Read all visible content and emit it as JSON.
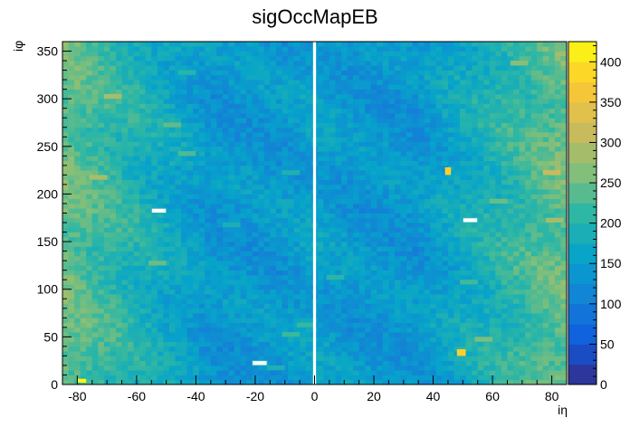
{
  "chart_data": {
    "type": "heatmap",
    "title": "sigOccMapEB",
    "xlabel": "iη",
    "ylabel": "iφ",
    "xlim": [
      -85,
      85
    ],
    "ylim": [
      0,
      360
    ],
    "zlim": [
      0,
      425
    ],
    "grid": false,
    "x_ticks": [
      -80,
      -60,
      -40,
      -20,
      0,
      20,
      40,
      60,
      80
    ],
    "y_ticks": [
      0,
      50,
      100,
      150,
      200,
      250,
      300,
      350
    ],
    "z_ticks": [
      0,
      50,
      100,
      150,
      200,
      250,
      300,
      350,
      400
    ],
    "colormap": [
      "#352a87",
      "#0f5cdd",
      "#1481d6",
      "#06a4ca",
      "#2eb7a4",
      "#87bf77",
      "#d1bb59",
      "#fec832",
      "#f9fb0e"
    ],
    "gap_column_ieta": 0,
    "profile_description": "occupancy mostly 150-220, higher (~250-300) near |iη| 70-85, lowest (~120-150) near |iη| 5-30",
    "hot_spots": [
      {
        "ieta_from": 44,
        "ieta_to": 46,
        "iphi_from": 220,
        "iphi_to": 228,
        "value": 380
      },
      {
        "ieta_from": 48,
        "ieta_to": 51,
        "iphi_from": 30,
        "iphi_to": 37,
        "value": 380
      },
      {
        "ieta_from": -80,
        "ieta_to": -77,
        "iphi_from": 2,
        "iphi_to": 6,
        "value": 420
      }
    ],
    "dead_regions": [
      {
        "ieta_from": -55,
        "ieta_to": -50,
        "iphi_from": 180,
        "iphi_to": 185
      },
      {
        "ieta_from": -21,
        "ieta_to": -16,
        "iphi_from": 20,
        "iphi_to": 25
      },
      {
        "ieta_from": 50,
        "ieta_to": 55,
        "iphi_from": 170,
        "iphi_to": 175
      }
    ],
    "highlight_tiles": [
      {
        "ieta_from": -46,
        "ieta_to": -40,
        "iphi_from": 325,
        "iphi_to": 330
      },
      {
        "ieta_from": -71,
        "ieta_to": -65,
        "iphi_from": 300,
        "iphi_to": 305
      },
      {
        "ieta_from": -51,
        "ieta_to": -45,
        "iphi_from": 270,
        "iphi_to": 275
      },
      {
        "ieta_from": -46,
        "ieta_to": -40,
        "iphi_from": 240,
        "iphi_to": 245
      },
      {
        "ieta_from": -76,
        "ieta_to": -70,
        "iphi_from": 215,
        "iphi_to": 220
      },
      {
        "ieta_from": -11,
        "ieta_to": -5,
        "iphi_from": 220,
        "iphi_to": 225
      },
      {
        "ieta_from": -31,
        "ieta_to": -25,
        "iphi_from": 165,
        "iphi_to": 170
      },
      {
        "ieta_from": -56,
        "ieta_to": -50,
        "iphi_from": 125,
        "iphi_to": 130
      },
      {
        "ieta_from": -6,
        "ieta_to": 0,
        "iphi_from": 60,
        "iphi_to": 65
      },
      {
        "ieta_from": -11,
        "ieta_to": -5,
        "iphi_from": 50,
        "iphi_to": 55
      },
      {
        "ieta_from": -16,
        "ieta_to": -10,
        "iphi_from": 15,
        "iphi_to": 20
      },
      {
        "ieta_from": 66,
        "ieta_to": 72,
        "iphi_from": 335,
        "iphi_to": 340
      },
      {
        "ieta_from": 59,
        "ieta_to": 65,
        "iphi_from": 190,
        "iphi_to": 195
      },
      {
        "ieta_from": 77,
        "ieta_to": 83,
        "iphi_from": 220,
        "iphi_to": 225
      },
      {
        "ieta_from": 78,
        "ieta_to": 84,
        "iphi_from": 170,
        "iphi_to": 175
      },
      {
        "ieta_from": 4,
        "ieta_to": 10,
        "iphi_from": 110,
        "iphi_to": 115
      },
      {
        "ieta_from": 49,
        "ieta_to": 55,
        "iphi_from": 105,
        "iphi_to": 110
      },
      {
        "ieta_from": 54,
        "ieta_to": 60,
        "iphi_from": 45,
        "iphi_to": 50
      }
    ]
  }
}
